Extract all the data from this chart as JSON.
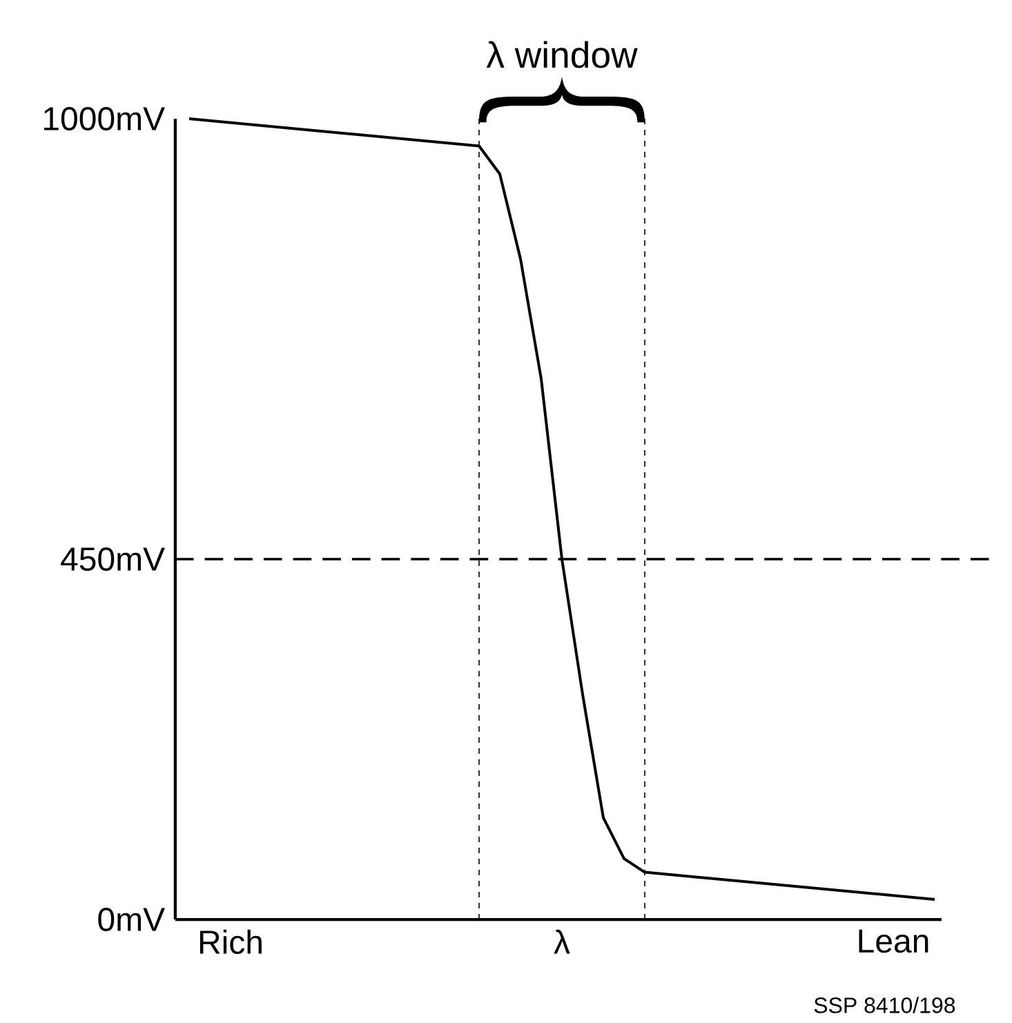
{
  "chart_data": {
    "type": "line",
    "categories": [
      null,
      null,
      "Rich",
      null,
      null,
      null,
      null,
      null,
      null,
      null,
      null,
      null,
      null,
      null,
      null,
      null,
      null,
      null,
      "λ",
      null,
      null,
      null,
      null,
      null,
      null,
      null,
      null,
      null,
      null,
      null,
      null,
      null,
      null,
      null,
      "Lean",
      null,
      null
    ],
    "series": [
      {
        "color": "#000000",
        "marker": "none",
        "line_style": "solid",
        "values": [
          1000,
          null,
          null,
          null,
          null,
          null,
          null,
          983,
          null,
          null,
          null,
          null,
          null,
          null,
          966,
          931,
          825,
          675,
          450,
          281,
          127,
          76,
          59,
          null,
          null,
          null,
          null,
          null,
          null,
          42,
          null,
          null,
          null,
          null,
          null,
          null,
          25
        ]
      }
    ],
    "ylim": [
      0,
      1000
    ],
    "yticks": [
      {
        "value": 0,
        "label": "0mV"
      },
      {
        "value": 450,
        "label": "450mV"
      },
      {
        "value": 1000,
        "label": "1000mV"
      }
    ],
    "ref_lines": [
      {
        "axis": "y",
        "value": 450,
        "line_style": "dashed",
        "color": "#000000"
      }
    ],
    "annotations": [
      "λ window",
      "SSP 8410/198"
    ]
  }
}
